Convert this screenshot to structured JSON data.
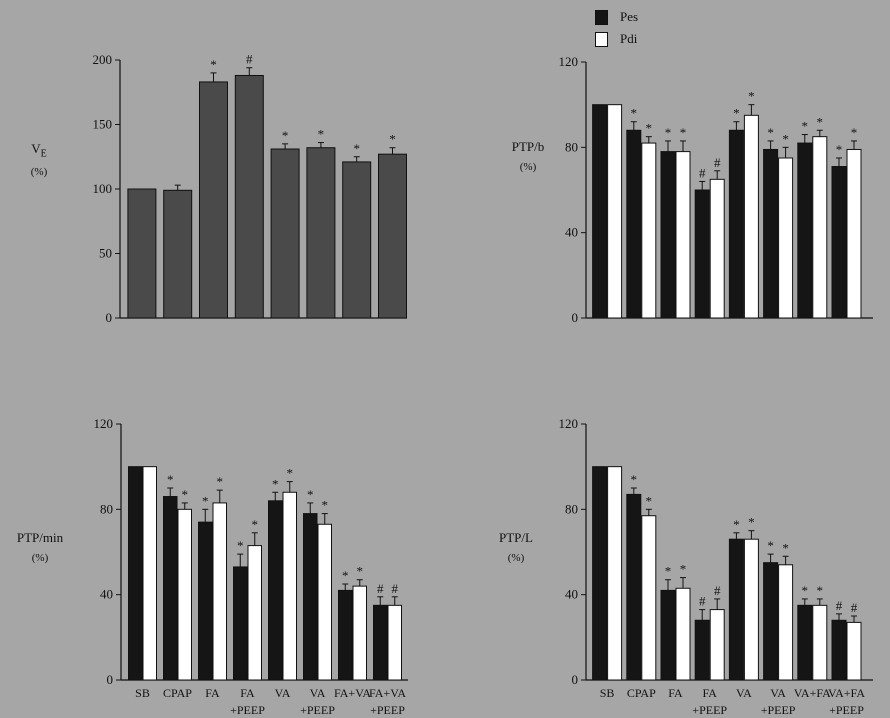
{
  "legend": {
    "pes_label": "Pes",
    "pdi_label": "Pdi",
    "pes_color": "#151515",
    "pdi_color": "#ffffff"
  },
  "chart_data": [
    {
      "id": "ve",
      "type": "bar",
      "ylabel_main": "V",
      "ylabel_sub": "E",
      "ylabel_unit": "(%)",
      "ylim": [
        0,
        200
      ],
      "yticks": [
        0,
        50,
        100,
        150,
        200
      ],
      "categories": [
        "",
        "",
        "",
        "",
        "",
        "",
        "",
        ""
      ],
      "series": [
        {
          "color": "#4a4a4a",
          "values": [
            100,
            99,
            183,
            188,
            131,
            132,
            121,
            127
          ],
          "errors": [
            0,
            4,
            7,
            6,
            4,
            4,
            4,
            5
          ],
          "marks": [
            "",
            "",
            "*",
            "#",
            "*",
            "*",
            "*",
            "*"
          ]
        }
      ]
    },
    {
      "id": "ptpb",
      "type": "bar",
      "ylabel": "PTP/b",
      "ylabel_unit": "(%)",
      "ylim": [
        0,
        120
      ],
      "yticks": [
        0,
        40,
        80,
        120
      ],
      "categories": [
        "",
        "",
        "",
        "",
        "",
        "",
        "",
        ""
      ],
      "series": [
        {
          "color": "#151515",
          "values": [
            100,
            88,
            78,
            60,
            88,
            79,
            82,
            71
          ],
          "errors": [
            0,
            4,
            5,
            4,
            4,
            4,
            4,
            4
          ],
          "marks": [
            "",
            "*",
            "*",
            "#",
            "*",
            "*",
            "*",
            "*"
          ]
        },
        {
          "color": "#ffffff",
          "values": [
            100,
            82,
            78,
            65,
            95,
            75,
            85,
            79
          ],
          "errors": [
            0,
            3,
            5,
            4,
            5,
            5,
            3,
            4
          ],
          "marks": [
            "",
            "*",
            "*",
            "#",
            "*",
            "*",
            "*",
            "*"
          ]
        }
      ]
    },
    {
      "id": "ptpmin",
      "type": "bar",
      "ylabel": "PTP/min",
      "ylabel_unit": "(%)",
      "ylim": [
        0,
        120
      ],
      "yticks": [
        0,
        40,
        80,
        120
      ],
      "categories": [
        "SB",
        "CPAP",
        "FA",
        "FA\n+PEEP",
        "VA",
        "VA\n+PEEP",
        "FA+VA",
        "FA+VA\n+PEEP"
      ],
      "series": [
        {
          "color": "#151515",
          "values": [
            100,
            86,
            74,
            53,
            84,
            78,
            42,
            35
          ],
          "errors": [
            0,
            4,
            6,
            6,
            4,
            5,
            3,
            4
          ],
          "marks": [
            "",
            "*",
            "*",
            "*",
            "*",
            "*",
            "*",
            "#"
          ]
        },
        {
          "color": "#ffffff",
          "values": [
            100,
            80,
            83,
            63,
            88,
            73,
            44,
            35
          ],
          "errors": [
            0,
            3,
            6,
            6,
            5,
            5,
            3,
            4
          ],
          "marks": [
            "",
            "*",
            "*",
            "*",
            "*",
            "*",
            "*",
            "#"
          ]
        }
      ]
    },
    {
      "id": "ptpl",
      "type": "bar",
      "ylabel": "PTP/L",
      "ylabel_unit": "(%)",
      "ylim": [
        0,
        120
      ],
      "yticks": [
        0,
        40,
        80,
        120
      ],
      "categories": [
        "SB",
        "CPAP",
        "FA",
        "FA\n+PEEP",
        "VA",
        "VA\n+PEEP",
        "VA+FA",
        "VA+FA\n+PEEP"
      ],
      "series": [
        {
          "color": "#151515",
          "values": [
            100,
            87,
            42,
            28,
            66,
            55,
            35,
            28
          ],
          "errors": [
            0,
            3,
            5,
            5,
            3,
            4,
            3,
            3
          ],
          "marks": [
            "",
            "*",
            "*",
            "#",
            "*",
            "*",
            "*",
            "#"
          ]
        },
        {
          "color": "#ffffff",
          "values": [
            100,
            77,
            43,
            33,
            66,
            54,
            35,
            27
          ],
          "errors": [
            0,
            3,
            5,
            5,
            4,
            4,
            3,
            3
          ],
          "marks": [
            "",
            "*",
            "*",
            "#",
            "*",
            "*",
            "*",
            "#"
          ]
        }
      ]
    }
  ]
}
